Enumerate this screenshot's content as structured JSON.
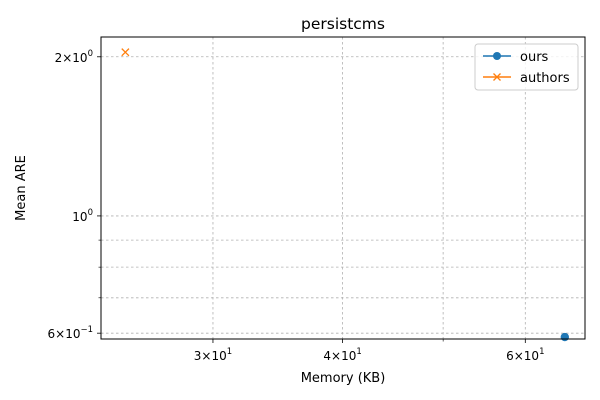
{
  "chart_data": {
    "type": "line",
    "title": "persistcms",
    "xlabel": "Memory (KB)",
    "ylabel": "Mean ARE",
    "xscale": "log",
    "yscale": "log",
    "xlim": [
      23.4,
      68.5
    ],
    "ylim": [
      0.585,
      2.18
    ],
    "grid": true,
    "legend_position": "top-right",
    "x_major_ticks": [
      {
        "value": 30,
        "base": "3",
        "mult": "×",
        "ten": "10",
        "exp": "1"
      },
      {
        "value": 40,
        "base": "4",
        "mult": "×",
        "ten": "10",
        "exp": "1"
      },
      {
        "value": 60,
        "base": "6",
        "mult": "×",
        "ten": "10",
        "exp": "1"
      }
    ],
    "x_minor_ticks": [
      50
    ],
    "y_major_ticks": [
      {
        "value": 2,
        "base": "2",
        "mult": "×",
        "ten": "10",
        "exp": "0"
      },
      {
        "value": 1,
        "base": "",
        "mult": "",
        "ten": "10",
        "exp": "0"
      },
      {
        "value": 0.6,
        "base": "6",
        "mult": "×",
        "ten": "10",
        "exp": "−1"
      }
    ],
    "y_minor_ticks": [
      0.9,
      0.8,
      0.7
    ],
    "series": [
      {
        "name": "ours",
        "color": "#1f77b4",
        "marker": "circle",
        "x": [
          65.5
        ],
        "y": [
          0.59
        ]
      },
      {
        "name": "authors",
        "color": "#ff7f0e",
        "marker": "x",
        "x": [
          24.7
        ],
        "y": [
          2.04
        ]
      }
    ]
  }
}
